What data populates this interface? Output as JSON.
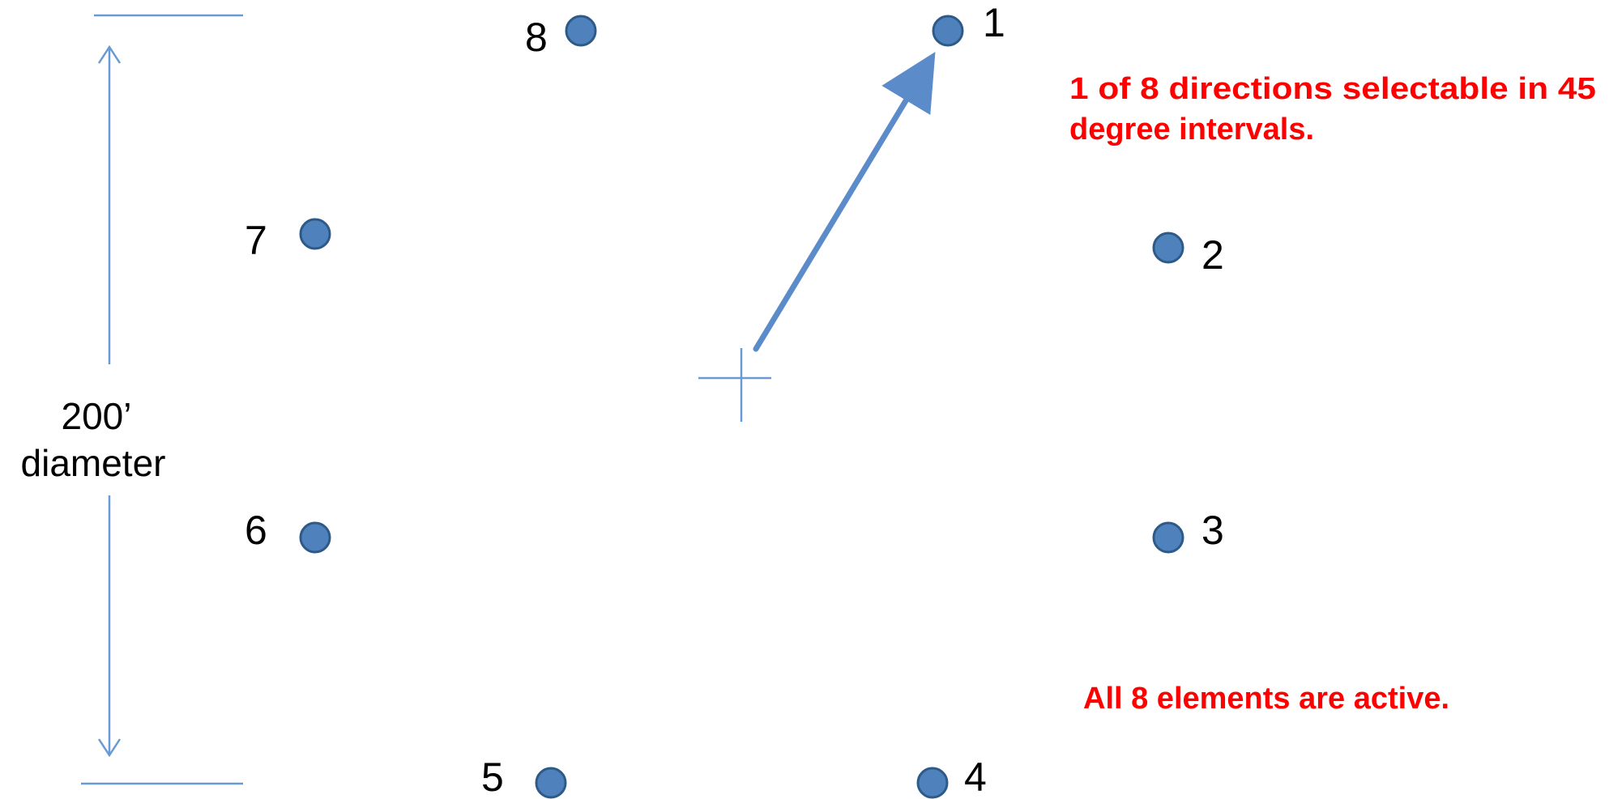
{
  "diagram": {
    "elements": [
      {
        "label": "1"
      },
      {
        "label": "2"
      },
      {
        "label": "3"
      },
      {
        "label": "4"
      },
      {
        "label": "5"
      },
      {
        "label": "6"
      },
      {
        "label": "7"
      },
      {
        "label": "8"
      }
    ],
    "dimension": {
      "value": "200’",
      "unit_label": "diameter"
    },
    "notes": {
      "directions_line1": "1 of 8 directions selectable in 45",
      "directions_line2": "degree intervals.",
      "active": "All 8 elements are active."
    },
    "colors": {
      "element_fill": "#4F81BD",
      "element_stroke": "#2E5A87",
      "arrow": "#5B8BC9",
      "guide_line": "#6A9AD6",
      "note_text": "#FF0000"
    }
  }
}
